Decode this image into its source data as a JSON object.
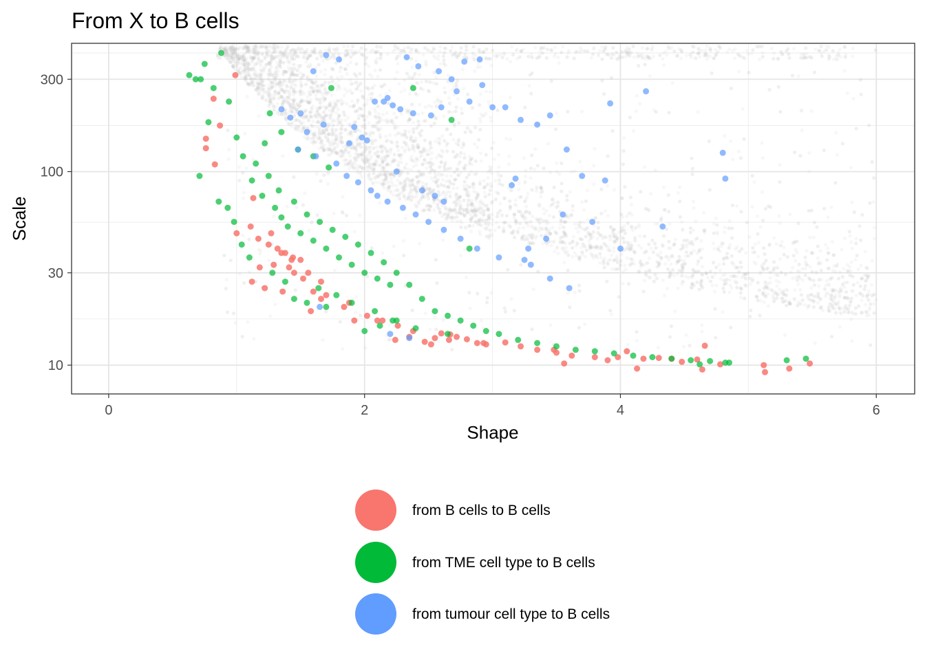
{
  "chart_data": {
    "type": "scatter",
    "title": "From X to  B cells",
    "xlabel": "Shape",
    "ylabel": "Scale",
    "xlim": [
      -0.29,
      6.3
    ],
    "ylim": [
      7.1,
      460
    ],
    "y_scale": "log10",
    "x_ticks": [
      0,
      2,
      4,
      6
    ],
    "x_tick_labels": [
      "0",
      "2",
      "4",
      "6"
    ],
    "y_ticks": [
      10,
      30,
      100,
      300
    ],
    "y_tick_labels": [
      "10",
      "30",
      "100",
      "300"
    ],
    "grid": true,
    "legend": {
      "position": "bottom",
      "entries": [
        "from B cells to B cells",
        "from TME cell type to B cells",
        "from tumour cell type to B cells"
      ]
    },
    "colors": {
      "background_points": "#bebebe",
      "B": "#F8766D",
      "TME": "#00BA38",
      "tumour": "#619CFF"
    },
    "background_cloud_note": "dense cloud of light grey points covering shape 0.7–6.0, scale 10–450 (L-shaped density)",
    "series": [
      {
        "name": "from B cells to B cells",
        "color": "#F8766D",
        "x": [
          0.99,
          0.82,
          0.87,
          0.76,
          0.83,
          1.11,
          1.17,
          1.25,
          1.32,
          1.38,
          1.44,
          1.5,
          1.27,
          1.35,
          1.41,
          1.52,
          1.6,
          1.66,
          1.12,
          1.18,
          1.29,
          1.43,
          1.56,
          1.7,
          1.84,
          1.92,
          2.02,
          2.14,
          2.26,
          2.38,
          2.47,
          2.55,
          2.6,
          2.66,
          2.72,
          2.8,
          2.88,
          2.95,
          3.1,
          3.22,
          3.35,
          3.5,
          3.62,
          3.8,
          3.9,
          3.98,
          4.05,
          4.18,
          4.3,
          4.4,
          4.48,
          4.6,
          4.66,
          4.78,
          5.12,
          5.32,
          5.48,
          5.13,
          4.13,
          3.56,
          2.24,
          1.22,
          1.45,
          1.66,
          1.88,
          2.1,
          2.35,
          2.52,
          2.67,
          2.93,
          3.48,
          4.64,
          1.0,
          1.13,
          0.76,
          1.36,
          1.58
        ],
        "y": [
          315,
          238,
          173,
          132,
          109,
          52,
          45,
          42,
          40,
          38,
          36,
          35,
          48,
          38,
          32,
          28,
          24,
          22,
          27,
          32,
          33,
          35,
          30,
          23,
          20,
          17,
          18,
          17,
          16,
          15,
          13.2,
          13.8,
          14.6,
          13.5,
          14,
          13.6,
          13,
          12.8,
          13.1,
          12.5,
          12,
          11.6,
          11.2,
          11,
          10.6,
          11,
          11.8,
          10.8,
          10.9,
          10.8,
          10.4,
          10.7,
          12.6,
          10.1,
          10,
          9.6,
          10.2,
          9.2,
          9.6,
          10.2,
          13.5,
          25,
          30,
          27,
          21,
          17,
          14,
          12.8,
          14.4,
          13,
          12,
          9.5,
          48,
          73,
          148,
          24,
          19
        ],
        "size": 8,
        "opacity": 0.85
      },
      {
        "name": "from TME cell type to B cells",
        "color": "#00BA38",
        "x": [
          0.88,
          0.75,
          0.68,
          0.63,
          0.82,
          0.94,
          0.78,
          0.71,
          0.86,
          1.0,
          1.05,
          1.12,
          1.2,
          1.3,
          1.35,
          1.4,
          1.5,
          1.6,
          1.7,
          1.8,
          1.9,
          2.0,
          2.1,
          2.2,
          1.15,
          1.25,
          1.33,
          1.45,
          1.55,
          1.65,
          1.75,
          1.85,
          1.95,
          2.05,
          2.15,
          2.25,
          2.35,
          2.45,
          2.55,
          2.65,
          2.75,
          2.85,
          2.95,
          3.05,
          3.2,
          3.35,
          3.5,
          3.65,
          3.8,
          3.95,
          4.1,
          4.25,
          4.4,
          4.55,
          4.7,
          4.85,
          5.3,
          5.45,
          2.0,
          2.12,
          2.25,
          1.45,
          1.55,
          1.7,
          1.38,
          1.28,
          1.1,
          1.04,
          0.98,
          0.93,
          1.64,
          1.78,
          1.9,
          2.08,
          2.22,
          2.4,
          2.65,
          1.22,
          1.35,
          1.48,
          1.6,
          1.72,
          0.72,
          2.38,
          2.68,
          2.82,
          1.74,
          1.26,
          4.82,
          4.62
        ],
        "y": [
          410,
          360,
          300,
          315,
          270,
          230,
          180,
          95,
          70,
          150,
          120,
          90,
          75,
          65,
          58,
          52,
          48,
          44,
          40,
          36,
          33,
          30,
          28,
          26,
          110,
          95,
          80,
          70,
          60,
          55,
          50,
          46,
          42,
          38,
          34,
          30,
          26,
          22,
          19,
          18,
          17,
          16,
          15,
          14.5,
          13.5,
          13,
          12.5,
          12,
          11.8,
          11.5,
          11.2,
          11,
          10.8,
          10.6,
          10.5,
          10.3,
          10.6,
          10.8,
          15,
          16,
          17,
          22,
          21,
          20,
          27,
          30,
          36,
          42,
          55,
          65,
          25,
          23,
          21,
          19,
          17,
          15.5,
          14.5,
          140,
          160,
          130,
          120,
          105,
          300,
          270,
          185,
          40,
          270,
          200,
          10.3,
          10.1
        ],
        "size": 8,
        "opacity": 0.7
      },
      {
        "name": "from tumour cell type to B cells",
        "color": "#619CFF",
        "x": [
          2.33,
          2.15,
          2.22,
          2.28,
          2.38,
          2.52,
          2.6,
          2.72,
          2.82,
          2.92,
          3.0,
          3.1,
          3.22,
          3.35,
          3.45,
          3.58,
          3.7,
          3.88,
          3.92,
          4.2,
          4.33,
          4.8,
          4.82,
          1.48,
          1.62,
          1.78,
          1.86,
          1.95,
          2.05,
          2.1,
          2.18,
          2.3,
          2.4,
          2.5,
          2.62,
          2.75,
          2.88,
          3.05,
          3.25,
          3.3,
          3.45,
          3.6,
          3.42,
          3.28,
          1.92,
          2.02,
          1.55,
          1.68,
          1.42,
          1.5,
          1.35,
          1.6,
          2.78,
          2.9,
          3.15,
          3.18,
          3.55,
          3.78,
          4.0,
          2.42,
          2.58,
          2.68,
          2.18,
          2.08,
          1.98,
          1.88,
          2.25,
          2.45,
          2.55,
          2.62,
          1.7,
          1.8,
          1.65,
          2.2,
          2.35
        ],
        "y": [
          390,
          230,
          220,
          210,
          200,
          195,
          215,
          260,
          230,
          280,
          215,
          215,
          185,
          175,
          195,
          130,
          95,
          90,
          225,
          260,
          52,
          125,
          92,
          130,
          120,
          110,
          95,
          88,
          80,
          75,
          70,
          65,
          60,
          55,
          50,
          45,
          40,
          36,
          35,
          33,
          28,
          25,
          45,
          40,
          170,
          145,
          160,
          175,
          190,
          200,
          210,
          330,
          370,
          380,
          85,
          92,
          60,
          55,
          40,
          350,
          330,
          300,
          240,
          230,
          150,
          140,
          100,
          80,
          75,
          70,
          400,
          380,
          20,
          14.5,
          13.8
        ],
        "size": 8,
        "opacity": 0.7
      }
    ]
  }
}
